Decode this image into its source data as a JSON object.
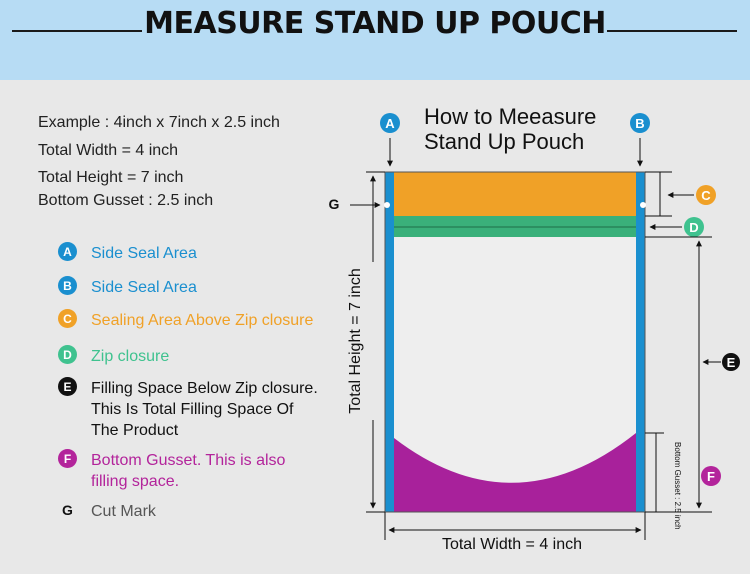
{
  "header": {
    "title": "MEASURE STAND UP POUCH"
  },
  "example": {
    "lines": [
      "Example : 4inch x 7inch x 2.5 inch",
      "Total Width = 4 inch",
      "Total Height = 7 inch",
      "Bottom Gusset : 2.5 inch"
    ]
  },
  "legend": [
    {
      "letter": "A",
      "text": "Side Seal Area",
      "color": "#1a8fcf"
    },
    {
      "letter": "B",
      "text": "Side Seal Area",
      "color": "#1a8fcf"
    },
    {
      "letter": "C",
      "text": "Sealing Area Above Zip closure",
      "color": "#f0a127"
    },
    {
      "letter": "D",
      "text": "Zip closure",
      "color": "#3fc28f"
    },
    {
      "letter": "E",
      "text": "Filling Space Below Zip closure.\nThis Is Total Filling Space Of\nThe Product",
      "color": "#111111"
    },
    {
      "letter": "F",
      "text": "Bottom Gusset. This is also\nfilling space.",
      "color": "#b3249b"
    },
    {
      "letter": "G",
      "text": "Cut Mark",
      "color": "#111111"
    }
  ],
  "diagram": {
    "title_line1": "How to Meeasure",
    "title_line2": "Stand Up Pouch",
    "label_a": "A",
    "label_b": "B",
    "label_c": "C",
    "label_d": "D",
    "label_e": "E",
    "label_f": "F",
    "label_g": "G",
    "height_label": "Total Height = 7 inch",
    "width_label": "Total Width = 4 inch",
    "gusset_label": "Bottom Gusset : 2.5 inch",
    "colors": {
      "side_seal": "#1a8fcf",
      "top_seal": "#f0a127",
      "zip": "#3ab07a",
      "body": "#eeeeee",
      "gusset": "#a8219b"
    }
  }
}
